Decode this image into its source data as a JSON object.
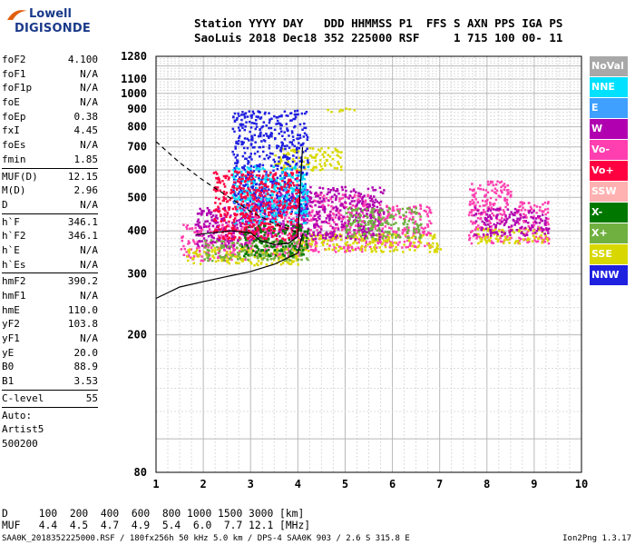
{
  "logo": {
    "line1": "Lowell",
    "line2": "DIGISONDE"
  },
  "header": {
    "labels": "Station YYYY DAY   DDD HHMMSS P1  FFS S AXN PPS IGA PS",
    "values": "SaoLuis 2018 Dec18 352 225000 RSF     1 715 100 00- 11"
  },
  "params": {
    "group1": [
      {
        "name": "foF2",
        "value": "4.100"
      },
      {
        "name": "foF1",
        "value": "N/A"
      },
      {
        "name": "foF1p",
        "value": "N/A"
      },
      {
        "name": "foE",
        "value": "N/A"
      },
      {
        "name": "foEp",
        "value": "0.38"
      },
      {
        "name": "fxI",
        "value": "4.45"
      },
      {
        "name": "foEs",
        "value": "N/A"
      },
      {
        "name": "fmin",
        "value": "1.85"
      }
    ],
    "group2": [
      {
        "name": "MUF(D)",
        "value": "12.15"
      },
      {
        "name": "M(D)",
        "value": "2.96"
      },
      {
        "name": "D",
        "value": "N/A"
      }
    ],
    "group3": [
      {
        "name": "h`F",
        "value": "346.1"
      },
      {
        "name": "h`F2",
        "value": "346.1"
      },
      {
        "name": "h`E",
        "value": "N/A"
      },
      {
        "name": "h`Es",
        "value": "N/A"
      }
    ],
    "group4": [
      {
        "name": "hmF2",
        "value": "390.2"
      },
      {
        "name": "hmF1",
        "value": "N/A"
      },
      {
        "name": "hmE",
        "value": "110.0"
      },
      {
        "name": "yF2",
        "value": "103.8"
      },
      {
        "name": "yF1",
        "value": "N/A"
      },
      {
        "name": "yE",
        "value": "20.0"
      },
      {
        "name": "B0",
        "value": "88.9"
      },
      {
        "name": "B1",
        "value": "3.53"
      }
    ],
    "group5": [
      {
        "name": "C-level",
        "value": "55"
      }
    ],
    "auto": [
      "Auto:",
      "Artist5",
      "500200"
    ]
  },
  "legend": [
    {
      "label": "NoVal",
      "color": "#a8a8a8"
    },
    {
      "label": "NNE",
      "color": "#00e0ff"
    },
    {
      "label": "E",
      "color": "#3fa0ff"
    },
    {
      "label": "W",
      "color": "#b000b0"
    },
    {
      "label": "Vo-",
      "color": "#ff3fb0"
    },
    {
      "label": "Vo+",
      "color": "#ff0040"
    },
    {
      "label": "SSW",
      "color": "#ffb0b0"
    },
    {
      "label": "X-",
      "color": "#007800"
    },
    {
      "label": "X+",
      "color": "#70b040"
    },
    {
      "label": "SSE",
      "color": "#d8d800"
    },
    {
      "label": "NNW",
      "color": "#2020e0"
    }
  ],
  "table": {
    "row1": "D     100  200  400  600  800 1000 1500 3000 [km]",
    "row2": "MUF   4.4  4.5  4.7  4.9  5.4  6.0  7.7 12.1 [MHz]"
  },
  "footer": {
    "left": "SAA0K_2018352225000.RSF / 180fx256h 50 kHz 5.0 km / DPS-4 SAA0K 903 / 2.6 S 315.8 E",
    "right": "Ion2Png 1.3.17"
  },
  "chart_data": {
    "type": "scatter",
    "title": "",
    "xlabel": "",
    "ylabel": "",
    "xlim": [
      1,
      10
    ],
    "ylim": [
      80,
      1280
    ],
    "yscale": "log",
    "grid": true,
    "x_ticks": [
      "1",
      "2",
      "3",
      "4",
      "5",
      "6",
      "7",
      "8",
      "9",
      "10"
    ],
    "y_ticks": [
      "80",
      "200",
      "300",
      "400",
      "500",
      "600",
      "700",
      "800",
      "900",
      "1000",
      "1100",
      "1280"
    ],
    "series": [
      {
        "name": "Vo-",
        "color": "#ff3fb0",
        "clusters": [
          {
            "x": [
              1.5,
              2.9
            ],
            "y": [
              330,
              420
            ]
          },
          {
            "x": [
              2.9,
              4.1
            ],
            "y": [
              340,
              500
            ]
          },
          {
            "x": [
              4.1,
              5.5
            ],
            "y": [
              350,
              520
            ]
          },
          {
            "x": [
              5.5,
              6.8
            ],
            "y": [
              360,
              480
            ]
          },
          {
            "x": [
              7.6,
              8.5
            ],
            "y": [
              370,
              560
            ]
          },
          {
            "x": [
              8.6,
              9.3
            ],
            "y": [
              370,
              490
            ]
          }
        ]
      },
      {
        "name": "SSE",
        "color": "#d8d800",
        "clusters": [
          {
            "x": [
              1.6,
              4.0
            ],
            "y": [
              320,
              360
            ]
          },
          {
            "x": [
              4.0,
              7.0
            ],
            "y": [
              350,
              395
            ]
          },
          {
            "x": [
              7.7,
              9.3
            ],
            "y": [
              370,
              410
            ]
          },
          {
            "x": [
              3.5,
              4.9
            ],
            "y": [
              600,
              700
            ]
          },
          {
            "x": [
              4.5,
              5.2
            ],
            "y": [
              890,
              910
            ]
          }
        ]
      },
      {
        "name": "W",
        "color": "#b000b0",
        "clusters": [
          {
            "x": [
              1.8,
              3.0
            ],
            "y": [
              360,
              470
            ]
          },
          {
            "x": [
              3.0,
              4.0
            ],
            "y": [
              380,
              520
            ]
          },
          {
            "x": [
              4.0,
              5.8
            ],
            "y": [
              380,
              540
            ]
          },
          {
            "x": [
              7.7,
              8.6
            ],
            "y": [
              390,
              470
            ]
          },
          {
            "x": [
              8.6,
              9.3
            ],
            "y": [
              390,
              460
            ]
          }
        ]
      },
      {
        "name": "X+",
        "color": "#70b040",
        "clusters": [
          {
            "x": [
              2.0,
              4.2
            ],
            "y": [
              330,
              380
            ]
          },
          {
            "x": [
              5.0,
              6.6
            ],
            "y": [
              380,
              470
            ]
          }
        ]
      },
      {
        "name": "NNW",
        "color": "#2020e0",
        "clusters": [
          {
            "x": [
              2.6,
              4.2
            ],
            "y": [
              450,
              900
            ]
          }
        ]
      },
      {
        "name": "NNE",
        "color": "#00e0ff",
        "clusters": [
          {
            "x": [
              2.6,
              4.2
            ],
            "y": [
              420,
              620
            ]
          }
        ]
      },
      {
        "name": "X-",
        "color": "#007800",
        "clusters": [
          {
            "x": [
              2.8,
              4.2
            ],
            "y": [
              340,
              420
            ]
          }
        ]
      },
      {
        "name": "Vo+",
        "color": "#ff0040",
        "clusters": [
          {
            "x": [
              2.2,
              4.0
            ],
            "y": [
              380,
              600
            ]
          }
        ]
      }
    ],
    "curves": [
      {
        "style": "dashed",
        "x": [
          1.0,
          1.5,
          2.0,
          2.5,
          3.0,
          3.5,
          3.9,
          4.0
        ],
        "y": [
          725,
          630,
          560,
          505,
          455,
          420,
          400,
          395
        ]
      },
      {
        "style": "solid",
        "x": [
          1.0,
          1.5,
          2.0,
          2.5,
          3.0,
          3.5,
          4.0,
          4.1
        ],
        "y": [
          255,
          275,
          285,
          295,
          305,
          320,
          345,
          390
        ]
      },
      {
        "style": "solid",
        "x": [
          1.85,
          2.2,
          2.6,
          3.0,
          3.2,
          3.5,
          3.8,
          4.0,
          4.1
        ],
        "y": [
          390,
          395,
          400,
          395,
          375,
          365,
          368,
          385,
          700
        ]
      }
    ]
  }
}
